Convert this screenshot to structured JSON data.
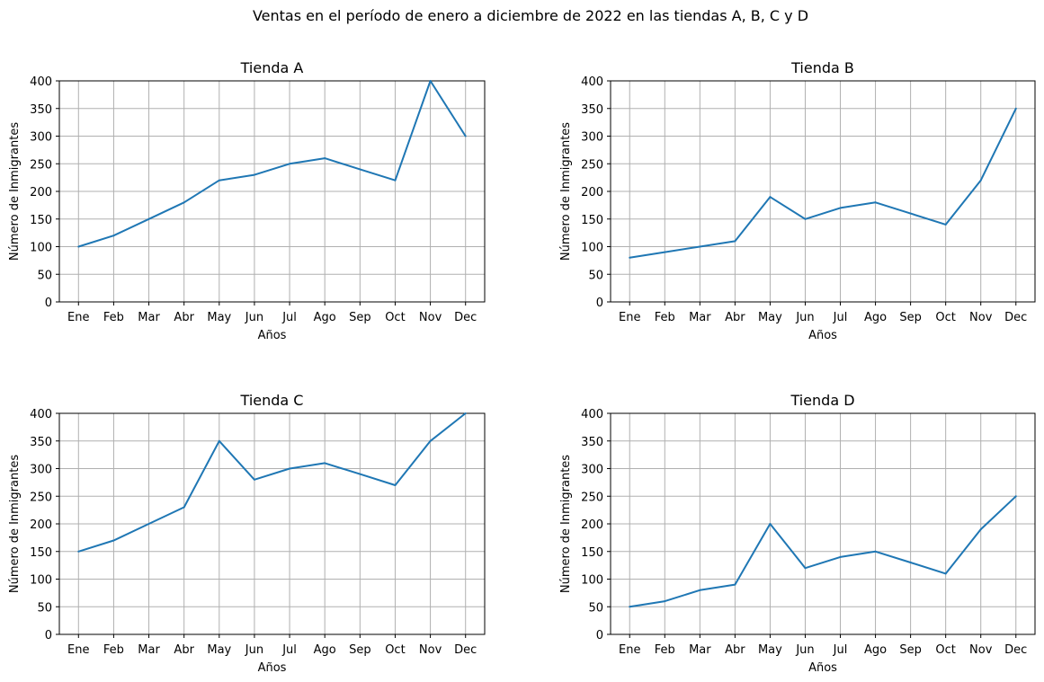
{
  "figure": {
    "title": "Ventas en el período de enero a diciembre de 2022 en las tiendas A, B, C y D"
  },
  "style": {
    "line_color": "#1f77b4",
    "grid_color": "#b0b0b0",
    "axis_color": "#000000"
  },
  "chart_data": [
    {
      "type": "line",
      "title": "Tienda A",
      "xlabel": "Años",
      "ylabel": "Número de Inmigrantes",
      "categories": [
        "Ene",
        "Feb",
        "Mar",
        "Abr",
        "May",
        "Jun",
        "Jul",
        "Ago",
        "Sep",
        "Oct",
        "Nov",
        "Dec"
      ],
      "values": [
        100,
        120,
        150,
        180,
        220,
        230,
        250,
        260,
        240,
        220,
        400,
        300
      ],
      "ylim": [
        0,
        400
      ],
      "yticks": [
        0,
        50,
        100,
        150,
        200,
        250,
        300,
        350,
        400
      ],
      "grid": true
    },
    {
      "type": "line",
      "title": "Tienda B",
      "xlabel": "Años",
      "ylabel": "Número de Inmigrantes",
      "categories": [
        "Ene",
        "Feb",
        "Mar",
        "Abr",
        "May",
        "Jun",
        "Jul",
        "Ago",
        "Sep",
        "Oct",
        "Nov",
        "Dec"
      ],
      "values": [
        80,
        90,
        100,
        110,
        190,
        150,
        170,
        180,
        160,
        140,
        220,
        350
      ],
      "ylim": [
        0,
        400
      ],
      "yticks": [
        0,
        50,
        100,
        150,
        200,
        250,
        300,
        350,
        400
      ],
      "grid": true
    },
    {
      "type": "line",
      "title": "Tienda C",
      "xlabel": "Años",
      "ylabel": "Número de Inmigrantes",
      "categories": [
        "Ene",
        "Feb",
        "Mar",
        "Abr",
        "May",
        "Jun",
        "Jul",
        "Ago",
        "Sep",
        "Oct",
        "Nov",
        "Dec"
      ],
      "values": [
        150,
        170,
        200,
        230,
        350,
        280,
        300,
        310,
        290,
        270,
        350,
        400
      ],
      "ylim": [
        0,
        400
      ],
      "yticks": [
        0,
        50,
        100,
        150,
        200,
        250,
        300,
        350,
        400
      ],
      "grid": true
    },
    {
      "type": "line",
      "title": "Tienda D",
      "xlabel": "Años",
      "ylabel": "Número de Inmigrantes",
      "categories": [
        "Ene",
        "Feb",
        "Mar",
        "Abr",
        "May",
        "Jun",
        "Jul",
        "Ago",
        "Sep",
        "Oct",
        "Nov",
        "Dec"
      ],
      "values": [
        50,
        60,
        80,
        90,
        200,
        120,
        140,
        150,
        130,
        110,
        190,
        250
      ],
      "ylim": [
        0,
        400
      ],
      "yticks": [
        0,
        50,
        100,
        150,
        200,
        250,
        300,
        350,
        400
      ],
      "grid": true
    }
  ]
}
